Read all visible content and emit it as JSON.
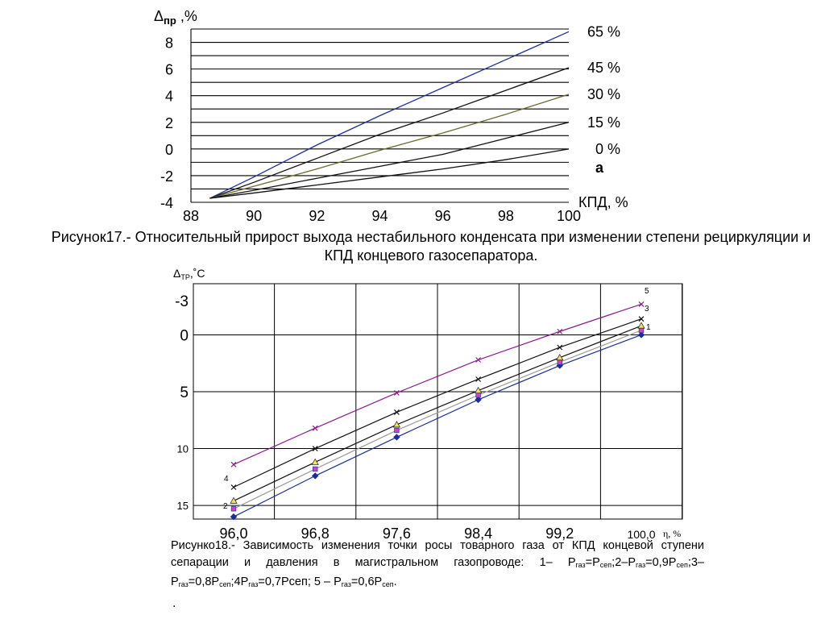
{
  "chart_data": [
    {
      "type": "line",
      "ylabel_main": "Δ",
      "ylabel_sub": "пр",
      "ylabel_suffix": " ,%",
      "xlabel": "КПД, %",
      "xlim": [
        88,
        100
      ],
      "ylim": [
        -4,
        9
      ],
      "xticks": [
        "88",
        "90",
        "92",
        "94",
        "96",
        "98",
        "100"
      ],
      "yticks": [
        "8",
        "6",
        "4",
        "2",
        "0",
        "-2",
        "-4"
      ],
      "panel_label": "а",
      "series": [
        {
          "name": "65 %",
          "color": "#1e2e9c",
          "x": [
            88.6,
            90,
            92,
            94,
            96,
            98,
            100
          ],
          "y": [
            -3.7,
            -2.1,
            0.3,
            2.5,
            4.6,
            6.7,
            8.8
          ]
        },
        {
          "name": "45 %",
          "color": "#111111",
          "x": [
            88.6,
            90,
            92,
            94,
            96,
            98,
            100
          ],
          "y": [
            -3.7,
            -2.5,
            -0.7,
            1.1,
            2.7,
            4.4,
            6.1
          ]
        },
        {
          "name": "30 %",
          "color": "#6b6b2a",
          "x": [
            88.6,
            90,
            92,
            94,
            96,
            98,
            100
          ],
          "y": [
            -3.7,
            -2.8,
            -1.5,
            -0.1,
            1.2,
            2.6,
            4.1
          ]
        },
        {
          "name": "15 %",
          "color": "#111111",
          "x": [
            88.6,
            90,
            92,
            94,
            96,
            98,
            100
          ],
          "y": [
            -3.7,
            -3.1,
            -2.2,
            -1.3,
            -0.4,
            0.8,
            2.0
          ]
        },
        {
          "name": "0 %",
          "color": "#111111",
          "x": [
            88.6,
            90,
            92,
            94,
            96,
            98,
            100
          ],
          "y": [
            -3.7,
            -3.3,
            -2.7,
            -2.1,
            -1.5,
            -0.8,
            0.0
          ]
        }
      ]
    },
    {
      "type": "line",
      "ylabel_main": "Δ",
      "ylabel_sub": "ТР",
      "ylabel_suffix": ",˚С",
      "xlabel": "η, %",
      "x": [
        96.0,
        96.8,
        97.6,
        98.4,
        99.2,
        100.0
      ],
      "xtick_labels": [
        "96,0",
        "96,8",
        "97,6",
        "98,4",
        "99,2",
        "100,0"
      ],
      "ylim": [
        -4.5,
        16.2
      ],
      "yticks": [
        {
          "value": -3,
          "label": "-3"
        },
        {
          "value": 0,
          "label": "0"
        },
        {
          "value": 5,
          "label": "5"
        },
        {
          "value": 10,
          "label": "10"
        },
        {
          "value": 15,
          "label": "15"
        }
      ],
      "series": [
        {
          "name": "1",
          "color": "#1a2d9a",
          "marker": "diamond",
          "values": [
            16.0,
            12.4,
            9.0,
            5.7,
            2.7,
            0.0
          ]
        },
        {
          "name": "2",
          "color": "#9a9a9a",
          "marker": "square",
          "values": [
            15.3,
            11.8,
            8.4,
            5.3,
            2.4,
            -0.4
          ]
        },
        {
          "name": "3",
          "color": "#111111",
          "marker": "triangle",
          "values": [
            14.6,
            11.2,
            7.9,
            4.9,
            2.0,
            -0.8
          ]
        },
        {
          "name": "4",
          "color": "#111111",
          "marker": "x",
          "values": [
            13.4,
            10.0,
            6.8,
            3.9,
            1.1,
            -1.4
          ]
        },
        {
          "name": "5",
          "color": "#8b1a8b",
          "marker": "x",
          "values": [
            11.4,
            8.2,
            5.1,
            2.2,
            -0.3,
            -2.7
          ]
        }
      ]
    }
  ],
  "captions": {
    "fig17": "Рисунок17.- Относительный прирост выхода нестабильного конденсата при изменении степени рециркуляции и КПД концевого газосепаратора.",
    "fig18_parts": [
      "Рисунко18.- Зависимость изменения точки росы товарного газа от КПД концевой ступени сепарации и давления в магистральном газопроводе: 1– P",
      "газ",
      "=P",
      "сеп",
      ";2–P",
      "газ",
      "=0,9P",
      "сеп",
      ";3–P",
      "газ",
      "=0,8P",
      "сеп",
      ";4P",
      "газ",
      "=0,7Pсеп; 5 – P",
      "газ",
      "=0,6P",
      "сеп",
      "."
    ],
    "trailing_dot": "."
  },
  "colors": {
    "marker_fill_square": "#cc44cc",
    "marker_fill_triangle": "#f2e35b",
    "marker_fill_diamond": "#1a2d9a"
  }
}
